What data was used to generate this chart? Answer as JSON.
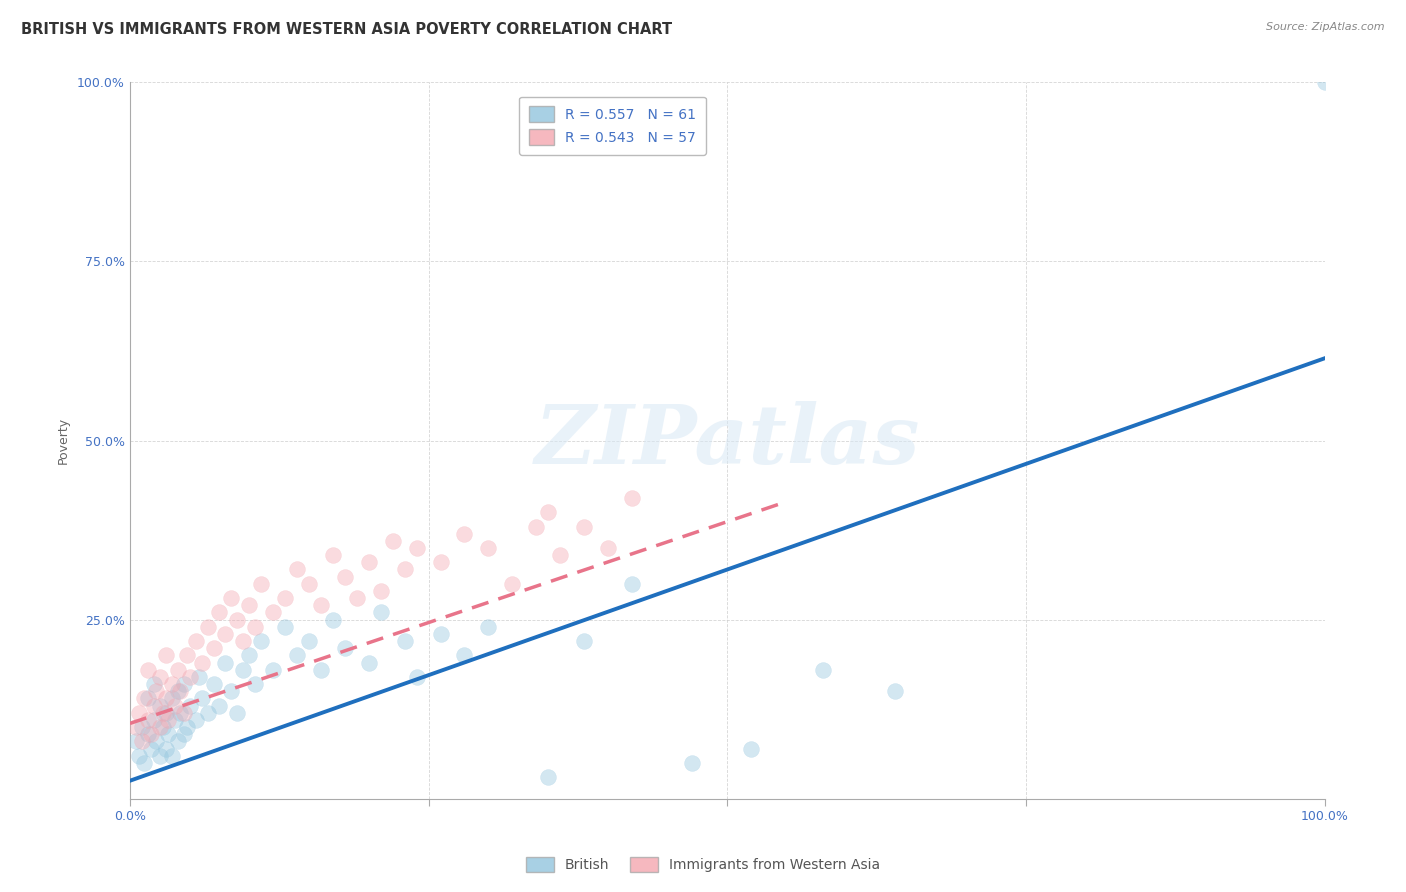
{
  "title": "BRITISH VS IMMIGRANTS FROM WESTERN ASIA POVERTY CORRELATION CHART",
  "source": "Source: ZipAtlas.com",
  "ylabel": "Poverty",
  "watermark": "ZIPatlas",
  "blue_R": 0.557,
  "blue_N": 61,
  "pink_R": 0.543,
  "pink_N": 57,
  "blue_color": "#92c5de",
  "pink_color": "#f4a6b0",
  "blue_line_color": "#1f6fbe",
  "pink_line_color": "#e8748a",
  "xlim": [
    0,
    1.0
  ],
  "ylim": [
    0,
    1.0
  ],
  "xticks": [
    0.0,
    0.25,
    0.5,
    0.75,
    1.0
  ],
  "yticks": [
    0.0,
    0.25,
    0.5,
    0.75,
    1.0
  ],
  "blue_x": [
    0.005,
    0.008,
    0.01,
    0.012,
    0.015,
    0.015,
    0.018,
    0.02,
    0.02,
    0.022,
    0.025,
    0.025,
    0.028,
    0.03,
    0.03,
    0.032,
    0.035,
    0.035,
    0.038,
    0.04,
    0.04,
    0.042,
    0.045,
    0.045,
    0.048,
    0.05,
    0.055,
    0.058,
    0.06,
    0.065,
    0.07,
    0.075,
    0.08,
    0.085,
    0.09,
    0.095,
    0.1,
    0.105,
    0.11,
    0.12,
    0.13,
    0.14,
    0.15,
    0.16,
    0.17,
    0.18,
    0.2,
    0.21,
    0.23,
    0.24,
    0.26,
    0.28,
    0.3,
    0.35,
    0.38,
    0.42,
    0.47,
    0.52,
    0.58,
    0.64,
    1.0
  ],
  "blue_y": [
    0.08,
    0.06,
    0.1,
    0.05,
    0.09,
    0.14,
    0.07,
    0.11,
    0.16,
    0.08,
    0.06,
    0.13,
    0.1,
    0.07,
    0.12,
    0.09,
    0.06,
    0.14,
    0.11,
    0.08,
    0.15,
    0.12,
    0.09,
    0.16,
    0.1,
    0.13,
    0.11,
    0.17,
    0.14,
    0.12,
    0.16,
    0.13,
    0.19,
    0.15,
    0.12,
    0.18,
    0.2,
    0.16,
    0.22,
    0.18,
    0.24,
    0.2,
    0.22,
    0.18,
    0.25,
    0.21,
    0.19,
    0.26,
    0.22,
    0.17,
    0.23,
    0.2,
    0.24,
    0.03,
    0.22,
    0.3,
    0.05,
    0.07,
    0.18,
    0.15,
    1.0
  ],
  "pink_x": [
    0.005,
    0.008,
    0.01,
    0.012,
    0.015,
    0.015,
    0.018,
    0.02,
    0.022,
    0.025,
    0.025,
    0.028,
    0.03,
    0.03,
    0.032,
    0.035,
    0.038,
    0.04,
    0.042,
    0.045,
    0.048,
    0.05,
    0.055,
    0.06,
    0.065,
    0.07,
    0.075,
    0.08,
    0.085,
    0.09,
    0.095,
    0.1,
    0.105,
    0.11,
    0.12,
    0.13,
    0.14,
    0.15,
    0.16,
    0.17,
    0.18,
    0.19,
    0.2,
    0.21,
    0.22,
    0.23,
    0.24,
    0.26,
    0.28,
    0.3,
    0.32,
    0.34,
    0.35,
    0.36,
    0.38,
    0.4,
    0.42
  ],
  "pink_y": [
    0.1,
    0.12,
    0.08,
    0.14,
    0.11,
    0.18,
    0.09,
    0.13,
    0.15,
    0.1,
    0.17,
    0.12,
    0.14,
    0.2,
    0.11,
    0.16,
    0.13,
    0.18,
    0.15,
    0.12,
    0.2,
    0.17,
    0.22,
    0.19,
    0.24,
    0.21,
    0.26,
    0.23,
    0.28,
    0.25,
    0.22,
    0.27,
    0.24,
    0.3,
    0.26,
    0.28,
    0.32,
    0.3,
    0.27,
    0.34,
    0.31,
    0.28,
    0.33,
    0.29,
    0.36,
    0.32,
    0.35,
    0.33,
    0.37,
    0.35,
    0.3,
    0.38,
    0.4,
    0.34,
    0.38,
    0.35,
    0.42
  ],
  "title_fontsize": 10.5,
  "axis_label_fontsize": 9,
  "tick_fontsize": 9,
  "legend_fontsize": 10,
  "source_fontsize": 8,
  "background_color": "#ffffff",
  "grid_color": "#cccccc",
  "marker_size": 130,
  "marker_alpha": 0.4,
  "line_width": 2.8,
  "blue_line_start_x": 0.0,
  "blue_line_start_y": 0.025,
  "blue_line_end_x": 1.0,
  "blue_line_end_y": 0.615,
  "pink_line_start_x": 0.0,
  "pink_line_start_y": 0.105,
  "pink_line_end_x": 0.55,
  "pink_line_end_y": 0.415
}
